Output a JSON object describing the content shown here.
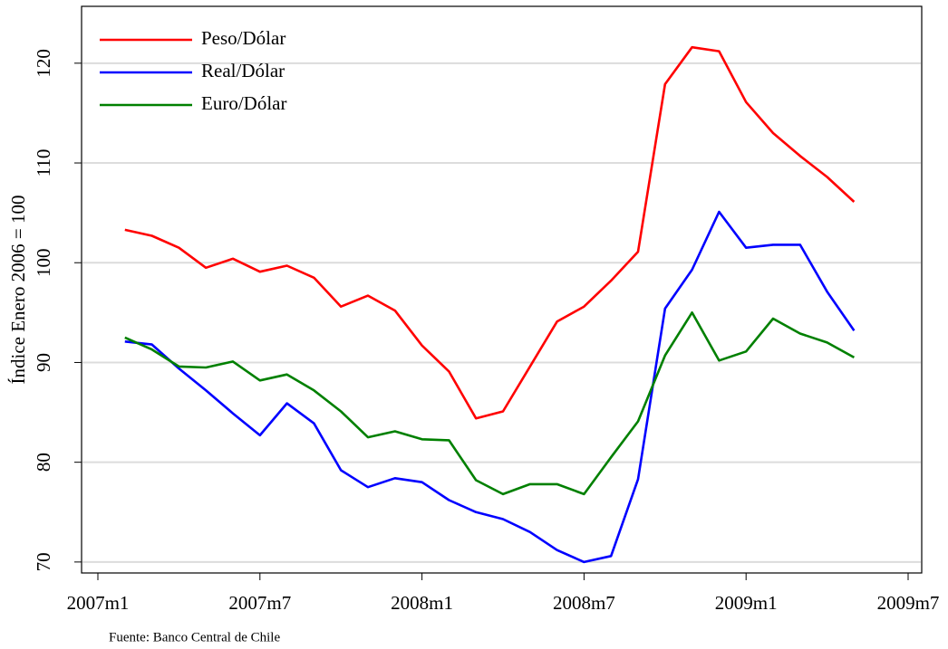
{
  "chart_data": {
    "type": "line",
    "ylabel": "Índice Enero 2006 = 100",
    "source": "Fuente: Banco Central de Chile",
    "x": [
      "2007m2",
      "2007m3",
      "2007m4",
      "2007m5",
      "2007m6",
      "2007m7",
      "2007m8",
      "2007m9",
      "2007m10",
      "2007m11",
      "2007m12",
      "2008m1",
      "2008m2",
      "2008m3",
      "2008m4",
      "2008m5",
      "2008m6",
      "2008m7",
      "2008m8",
      "2008m9",
      "2008m10",
      "2008m11",
      "2008m12",
      "2009m1",
      "2009m2",
      "2009m3",
      "2009m4",
      "2009m5"
    ],
    "xlim": [
      "2007m1",
      "2009m7"
    ],
    "xticks": [
      "2007m1",
      "2007m7",
      "2008m1",
      "2008m7",
      "2009m1",
      "2009m7"
    ],
    "ylim": [
      68.9,
      125.7
    ],
    "yticks": [
      70,
      80,
      90,
      100,
      110,
      120
    ],
    "grid": true,
    "legend": "top-left",
    "series": [
      {
        "name": "Peso/Dólar",
        "color": "#ff0000",
        "values": [
          103.3,
          102.7,
          101.5,
          99.5,
          100.4,
          99.1,
          99.7,
          98.5,
          95.6,
          96.7,
          95.2,
          91.7,
          89.1,
          84.4,
          85.1,
          89.6,
          94.1,
          95.6,
          98.2,
          101.1,
          117.9,
          121.6,
          121.2,
          116.1,
          113.0,
          110.7,
          108.6,
          106.1
        ]
      },
      {
        "name": "Real/Dólar",
        "color": "#0000ff",
        "values": [
          92.1,
          91.8,
          89.4,
          87.2,
          84.9,
          82.7,
          85.9,
          83.9,
          79.2,
          77.5,
          78.4,
          78.0,
          76.2,
          75.0,
          74.3,
          73.0,
          71.2,
          70.0,
          70.6,
          78.3,
          95.4,
          99.3,
          105.1,
          101.5,
          101.8,
          101.8,
          97.1,
          93.2
        ]
      },
      {
        "name": "Euro/Dólar",
        "color": "#008000",
        "values": [
          92.5,
          91.3,
          89.6,
          89.5,
          90.1,
          88.2,
          88.8,
          87.2,
          85.1,
          82.5,
          83.1,
          82.3,
          82.2,
          78.2,
          76.8,
          77.8,
          77.8,
          76.8,
          80.5,
          84.1,
          90.7,
          95.0,
          90.2,
          91.1,
          94.4,
          92.9,
          92.0,
          90.5
        ]
      }
    ]
  }
}
